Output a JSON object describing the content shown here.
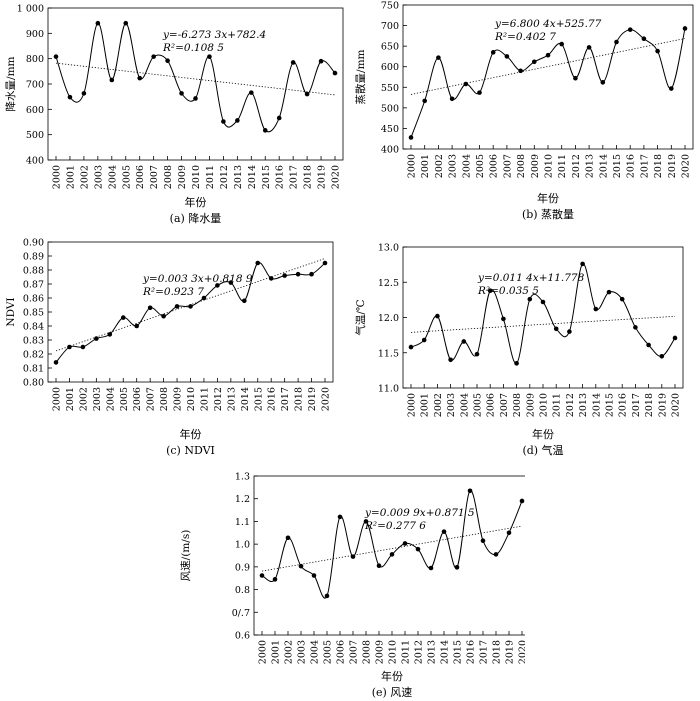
{
  "chart_data": [
    {
      "id": "a",
      "type": "line",
      "caption": "(a) 降水量",
      "xlabel": "年份",
      "ylabel": "降水量/mm",
      "ylim": [
        400,
        1000
      ],
      "yticks": [
        400,
        500,
        600,
        700,
        800,
        900,
        1000
      ],
      "ytick_labels": [
        "400",
        "500",
        "600",
        "700",
        "800",
        "900",
        "1 000"
      ],
      "x": [
        2000,
        2001,
        2002,
        2003,
        2004,
        2005,
        2006,
        2007,
        2008,
        2009,
        2010,
        2011,
        2012,
        2013,
        2014,
        2015,
        2016,
        2017,
        2018,
        2019,
        2020
      ],
      "values": [
        808,
        648,
        663,
        940,
        716,
        940,
        723,
        808,
        792,
        663,
        643,
        808,
        552,
        556,
        666,
        517,
        566,
        785,
        660,
        790,
        743
      ],
      "trend": [
        782.4,
        657.0
      ],
      "equation": "y=-6.273 3x+782.4",
      "r2": "R²=0.108 5"
    },
    {
      "id": "b",
      "type": "line",
      "caption": "(b) 蒸散量",
      "xlabel": "年份",
      "ylabel": "蒸散量/mm",
      "ylim": [
        400,
        750
      ],
      "yticks": [
        400,
        450,
        500,
        550,
        600,
        650,
        700,
        750
      ],
      "ytick_labels": [
        "400",
        "450",
        "500",
        "550",
        "600",
        "650",
        "700",
        "750"
      ],
      "x": [
        2000,
        2001,
        2002,
        2003,
        2004,
        2005,
        2006,
        2007,
        2008,
        2009,
        2010,
        2011,
        2012,
        2013,
        2014,
        2015,
        2016,
        2017,
        2018,
        2019,
        2020
      ],
      "values": [
        428,
        517,
        622,
        522,
        558,
        537,
        635,
        625,
        590,
        612,
        628,
        655,
        572,
        647,
        562,
        660,
        690,
        668,
        638,
        547,
        693
      ],
      "trend": [
        532.6,
        668.6
      ],
      "equation": "y=6.800 4x+525.77",
      "r2": "R²=0.402 7"
    },
    {
      "id": "c",
      "type": "line",
      "caption": "(c) NDVI",
      "xlabel": "年份",
      "ylabel": "NDVI",
      "ylim": [
        0.8,
        0.9
      ],
      "yticks": [
        0.8,
        0.81,
        0.82,
        0.83,
        0.84,
        0.85,
        0.86,
        0.87,
        0.88,
        0.89,
        0.9
      ],
      "ytick_labels": [
        "0.80",
        "0.81",
        "0.82",
        "0.83",
        "0.84",
        "0.85",
        "0.86",
        "0.87",
        "0.88",
        "0.89",
        "0.90"
      ],
      "x": [
        2000,
        2001,
        2002,
        2003,
        2004,
        2005,
        2006,
        2007,
        2008,
        2009,
        2010,
        2011,
        2012,
        2013,
        2014,
        2015,
        2016,
        2017,
        2018,
        2019,
        2020
      ],
      "values": [
        0.814,
        0.825,
        0.825,
        0.831,
        0.834,
        0.846,
        0.84,
        0.853,
        0.847,
        0.854,
        0.854,
        0.86,
        0.869,
        0.871,
        0.858,
        0.885,
        0.874,
        0.876,
        0.877,
        0.877,
        0.885
      ],
      "trend": [
        0.8222,
        0.8882
      ],
      "equation": "y=0.003 3x+0.818 9",
      "r2": "R²=0.923 7"
    },
    {
      "id": "d",
      "type": "line",
      "caption": "(d) 气温",
      "xlabel": "年份",
      "ylabel": "气温/℃",
      "ylim": [
        11.0,
        13.0
      ],
      "yticks": [
        11.0,
        11.5,
        12.0,
        12.5,
        13.0
      ],
      "ytick_labels": [
        "11.0",
        "11.5",
        "12.0",
        "12.5",
        "13.0"
      ],
      "x": [
        2000,
        2001,
        2002,
        2003,
        2004,
        2005,
        2006,
        2007,
        2008,
        2009,
        2010,
        2011,
        2012,
        2013,
        2014,
        2015,
        2016,
        2017,
        2018,
        2019,
        2020
      ],
      "values": [
        11.58,
        11.68,
        12.02,
        11.4,
        11.66,
        11.48,
        12.38,
        11.98,
        11.35,
        12.26,
        12.22,
        11.84,
        11.8,
        12.76,
        12.12,
        12.36,
        12.26,
        11.86,
        11.61,
        11.45,
        11.71
      ],
      "trend": [
        11.789,
        12.017
      ],
      "equation": "y=0.011 4x+11.778",
      "r2": "R²=0.035 5"
    },
    {
      "id": "e",
      "type": "line",
      "caption": "(e) 风速",
      "xlabel": "年份",
      "ylabel": "风速/(m/s)",
      "ylim": [
        0.6,
        1.3
      ],
      "yticks": [
        0.6,
        0.7,
        0.8,
        0.9,
        1.0,
        1.1,
        1.2,
        1.3
      ],
      "ytick_labels": [
        "0.6",
        "0/.7",
        "0.8",
        "0.9",
        "1.0",
        "1.1",
        "1.2",
        "1.3"
      ],
      "x": [
        2000,
        2001,
        2002,
        2003,
        2004,
        2005,
        2006,
        2007,
        2008,
        2009,
        2010,
        2011,
        2012,
        2013,
        2014,
        2015,
        2016,
        2017,
        2018,
        2019,
        2020
      ],
      "values": [
        0.862,
        0.845,
        1.028,
        0.903,
        0.862,
        0.772,
        1.12,
        0.945,
        1.1,
        0.905,
        0.955,
        1.003,
        0.978,
        0.895,
        1.055,
        0.898,
        1.235,
        1.015,
        0.955,
        1.05,
        1.19
      ],
      "trend": [
        0.8814,
        1.0794
      ],
      "equation": "y=0.009 9x+0.871 5",
      "r2": "R²=0.277 6"
    }
  ]
}
